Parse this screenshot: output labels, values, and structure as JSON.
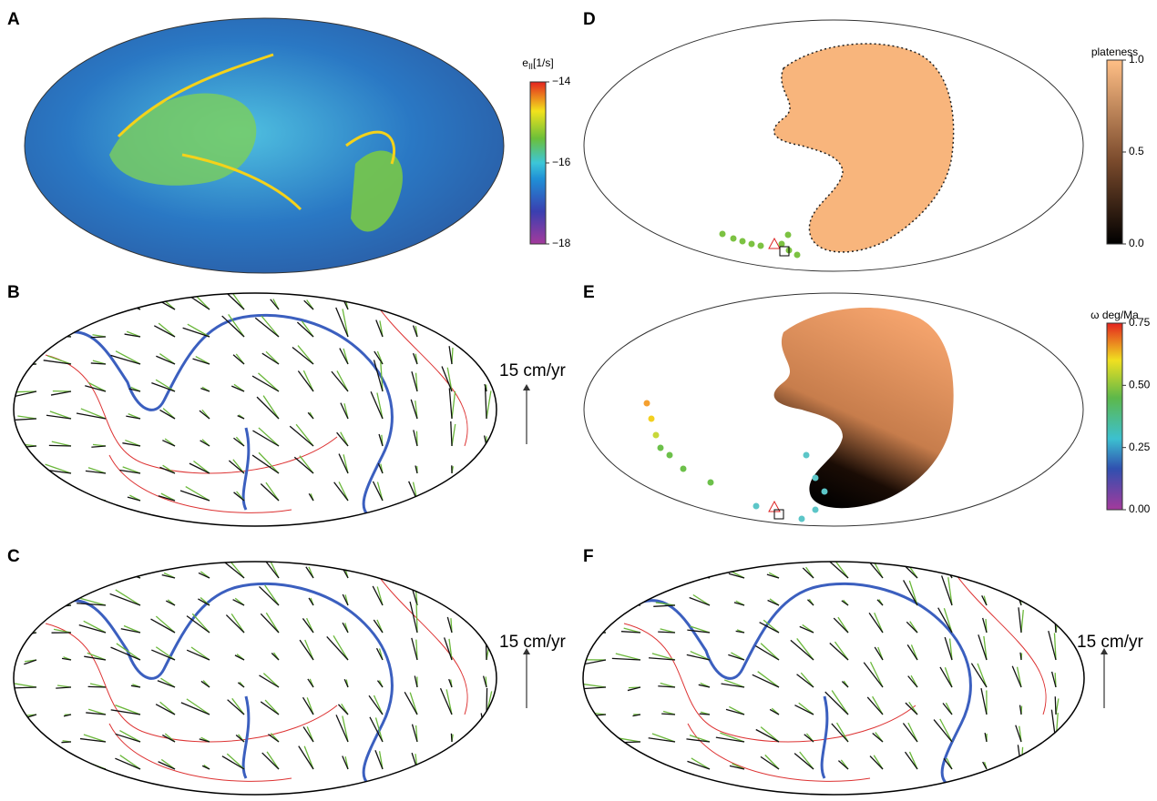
{
  "panels": [
    {
      "label": "A"
    },
    {
      "label": "B"
    },
    {
      "label": "C"
    },
    {
      "label": "D"
    },
    {
      "label": "E"
    },
    {
      "label": "F"
    }
  ],
  "colorbars": [
    {
      "title": "e",
      "title_subscript": "II",
      "title_unit": "[1/s]",
      "lim": [
        -18,
        -14
      ],
      "ticks": [
        {
          "value": -14,
          "label": "−14"
        },
        {
          "value": -16,
          "label": "−16"
        },
        {
          "value": -18,
          "label": "−18"
        }
      ]
    },
    {
      "title": "plateness",
      "lim": [
        0,
        1
      ],
      "ticks": [
        {
          "value": 1,
          "label": "1.0"
        },
        {
          "value": 0.5,
          "label": "0.5"
        },
        {
          "value": 0,
          "label": "0.0"
        }
      ]
    },
    {
      "title": "ω deg/Ma",
      "lim": [
        0,
        0.75
      ],
      "ticks": [
        {
          "value": 0.75,
          "label": "0.75"
        },
        {
          "value": 0.5,
          "label": "0.50"
        },
        {
          "value": 0.25,
          "label": "0.25"
        },
        {
          "value": 0,
          "label": "0.00"
        }
      ]
    }
  ],
  "scale_labels": [
    "15 cm/yr",
    "15 cm/yr",
    "15 cm/yr"
  ]
}
